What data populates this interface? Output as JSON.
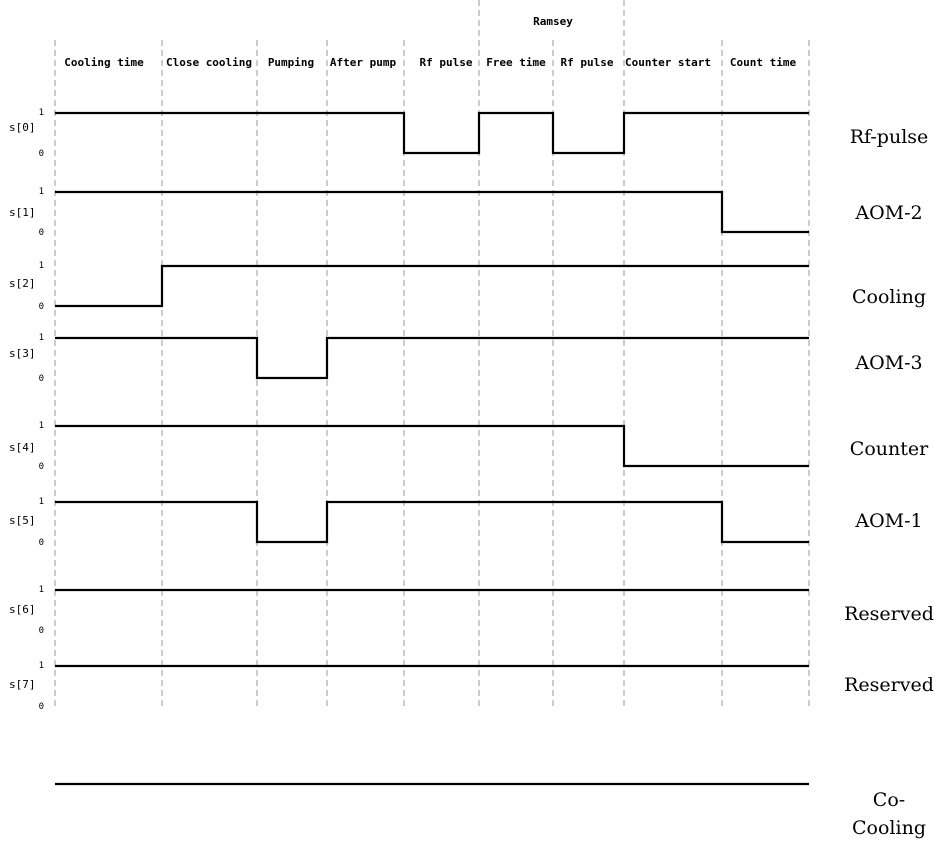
{
  "group_header": "Ramsey",
  "phases": [
    "Cooling time",
    "Close cooling",
    "Pumping",
    "After pump",
    "Rf pulse",
    "Free time",
    "Rf pulse",
    "Counter start",
    "Count time"
  ],
  "channels": [
    {
      "id": "s[0]",
      "high_label": "1",
      "low_label": "0",
      "signal": "Rf-pulse",
      "levels": [
        1,
        1,
        1,
        1,
        0,
        1,
        0,
        1,
        1
      ]
    },
    {
      "id": "s[1]",
      "high_label": "1",
      "low_label": "0",
      "signal": "AOM-2",
      "levels": [
        1,
        1,
        1,
        1,
        1,
        1,
        1,
        1,
        0
      ]
    },
    {
      "id": "s[2]",
      "high_label": "1",
      "low_label": "0",
      "signal": "Cooling",
      "levels": [
        0,
        1,
        1,
        1,
        1,
        1,
        1,
        1,
        1
      ]
    },
    {
      "id": "s[3]",
      "high_label": "1",
      "low_label": "0",
      "signal": "AOM-3",
      "levels": [
        1,
        1,
        0,
        1,
        1,
        1,
        1,
        1,
        1
      ]
    },
    {
      "id": "s[4]",
      "high_label": "1",
      "low_label": "0",
      "signal": "Counter",
      "levels": [
        1,
        1,
        1,
        1,
        1,
        1,
        1,
        0,
        0
      ]
    },
    {
      "id": "s[5]",
      "high_label": "1",
      "low_label": "0",
      "signal": "AOM-1",
      "levels": [
        1,
        1,
        0,
        1,
        1,
        1,
        1,
        1,
        0
      ]
    },
    {
      "id": "s[6]",
      "high_label": "1",
      "low_label": "0",
      "signal": "Reserved",
      "levels": [
        1,
        1,
        1,
        1,
        1,
        1,
        1,
        1,
        1
      ]
    },
    {
      "id": "s[7]",
      "high_label": "1",
      "low_label": "0",
      "signal": "Reserved",
      "levels": [
        1,
        1,
        1,
        1,
        1,
        1,
        1,
        1,
        1
      ]
    }
  ],
  "co_cooling": {
    "label_lines": [
      "Co-",
      "Cooling"
    ],
    "levels": [
      1,
      1,
      1,
      1,
      1,
      1,
      1,
      1,
      1
    ]
  }
}
